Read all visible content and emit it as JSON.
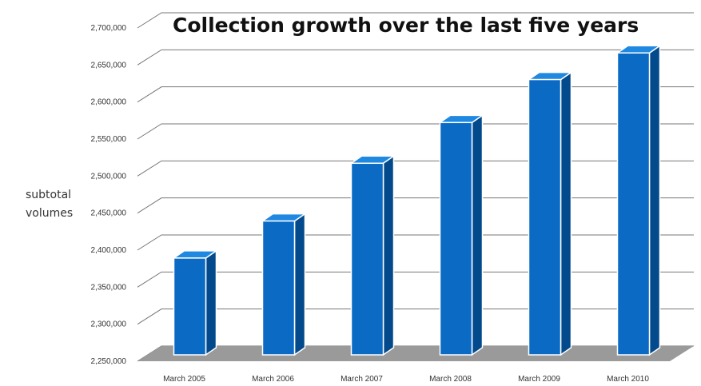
{
  "chart_data": {
    "type": "bar",
    "title": "Collection growth over the last five years",
    "xlabel": "",
    "ylabel": [
      "subtotal",
      "volumes"
    ],
    "categories": [
      "March 2005",
      "March 2006",
      "March 2007",
      "March 2008",
      "March 2009",
      "March 2010"
    ],
    "values": [
      2385000,
      2435000,
      2513000,
      2568000,
      2626000,
      2662000
    ],
    "ylim": [
      2250000,
      2700000
    ],
    "yticks": [
      2250000,
      2300000,
      2350000,
      2400000,
      2450000,
      2500000,
      2550000,
      2600000,
      2650000,
      2700000
    ],
    "ytick_labels": [
      "2,250,000",
      "2,300,000",
      "2,350,000",
      "2,400,000",
      "2,450,000",
      "2,500,000",
      "2,550,000",
      "2,600,000",
      "2,650,000",
      "2,700,000"
    ],
    "grid": true,
    "legend": "none",
    "style": "3d",
    "colors": {
      "bar_front": "#0a6ac4",
      "bar_top": "#1f88e0",
      "bar_side": "#034a8c",
      "floor": "#9a9a9a",
      "grid": "#777777"
    }
  }
}
